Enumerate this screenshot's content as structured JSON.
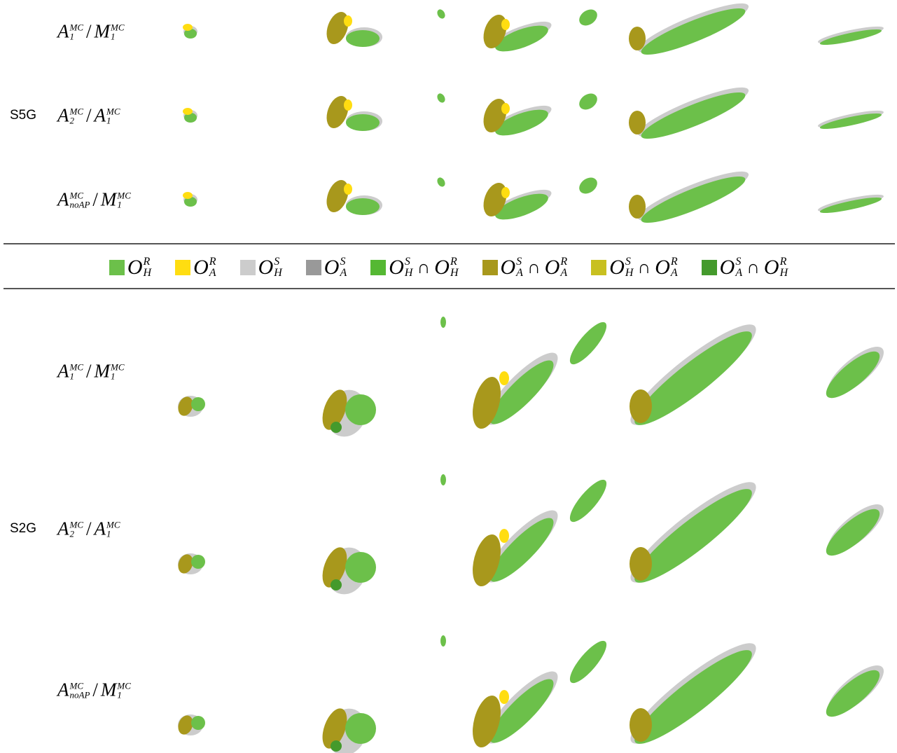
{
  "sections": [
    {
      "name": "S5G",
      "rows": [
        {
          "numerator": {
            "base": "A",
            "sup": "MC",
            "sub": "1"
          },
          "separator": "/",
          "denominator": {
            "base": "M",
            "sup": "MC",
            "sub": "1"
          }
        },
        {
          "numerator": {
            "base": "A",
            "sup": "MC",
            "sub": "2"
          },
          "separator": "/",
          "denominator": {
            "base": "A",
            "sup": "MC",
            "sub": "1"
          }
        },
        {
          "numerator": {
            "base": "A",
            "sup": "MC",
            "sub": "noAP"
          },
          "separator": "/",
          "denominator": {
            "base": "M",
            "sup": "MC",
            "sub": "1"
          }
        }
      ]
    },
    {
      "name": "S2G",
      "rows": [
        {
          "numerator": {
            "base": "A",
            "sup": "MC",
            "sub": "1"
          },
          "separator": "/",
          "denominator": {
            "base": "M",
            "sup": "MC",
            "sub": "1"
          }
        },
        {
          "numerator": {
            "base": "A",
            "sup": "MC",
            "sub": "2"
          },
          "separator": "/",
          "denominator": {
            "base": "A",
            "sup": "MC",
            "sub": "1"
          }
        },
        {
          "numerator": {
            "base": "A",
            "sup": "MC",
            "sub": "noAP"
          },
          "separator": "/",
          "denominator": {
            "base": "M",
            "sup": "MC",
            "sub": "1"
          }
        }
      ]
    }
  ],
  "legend": [
    {
      "color": "#6cc04a",
      "terms": [
        {
          "base": "O",
          "sup": "R",
          "sub": "H"
        }
      ]
    },
    {
      "color": "#ffdd11",
      "terms": [
        {
          "base": "O",
          "sup": "R",
          "sub": "A"
        }
      ]
    },
    {
      "color": "#cccccc",
      "terms": [
        {
          "base": "O",
          "sup": "S",
          "sub": "H"
        }
      ]
    },
    {
      "color": "#999999",
      "terms": [
        {
          "base": "O",
          "sup": "S",
          "sub": "A"
        }
      ]
    },
    {
      "color": "#55b833",
      "terms": [
        {
          "base": "O",
          "sup": "S",
          "sub": "H"
        },
        {
          "base": "O",
          "sup": "R",
          "sub": "H"
        }
      ],
      "operator": "∩"
    },
    {
      "color": "#a8981c",
      "terms": [
        {
          "base": "O",
          "sup": "S",
          "sub": "A"
        },
        {
          "base": "O",
          "sup": "R",
          "sub": "A"
        }
      ],
      "operator": "∩"
    },
    {
      "color": "#c8c020",
      "terms": [
        {
          "base": "O",
          "sup": "S",
          "sub": "H"
        },
        {
          "base": "O",
          "sup": "R",
          "sub": "A"
        }
      ],
      "operator": "∩"
    },
    {
      "color": "#449a2c",
      "terms": [
        {
          "base": "O",
          "sup": "S",
          "sub": "A"
        },
        {
          "base": "O",
          "sup": "R",
          "sub": "H"
        }
      ],
      "operator": "∩"
    }
  ]
}
